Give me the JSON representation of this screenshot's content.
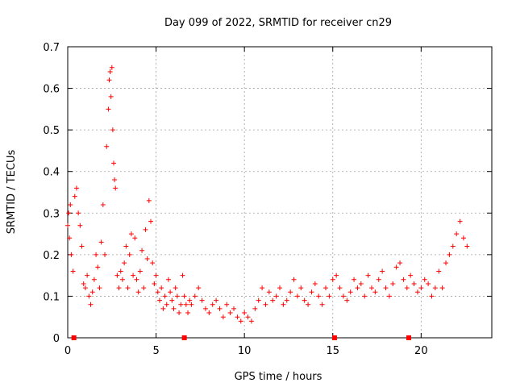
{
  "chart_data": {
    "type": "scatter",
    "title": "Day 099 of 2022, SRMTID for receiver cn29",
    "xlabel": "GPS time / hours",
    "ylabel": "SRMTID / TECUs",
    "xlim": [
      0,
      24
    ],
    "ylim": [
      0,
      0.7
    ],
    "xticks": [
      0,
      5,
      10,
      15,
      20
    ],
    "yticks": [
      0,
      0.1,
      0.2,
      0.3,
      0.4,
      0.5,
      0.6,
      0.7
    ],
    "grid": true,
    "marker": "+",
    "color": "#ff0000",
    "series": [
      {
        "name": "SRMTID",
        "x": [
          0.0,
          0.05,
          0.1,
          0.15,
          0.2,
          0.3,
          0.4,
          0.5,
          0.6,
          0.7,
          0.8,
          0.9,
          1.0,
          1.1,
          1.2,
          1.3,
          1.4,
          1.5,
          1.6,
          1.7,
          1.8,
          1.9,
          2.0,
          2.1,
          2.2,
          2.3,
          2.35,
          2.4,
          2.45,
          2.5,
          2.55,
          2.6,
          2.65,
          2.7,
          2.8,
          2.9,
          3.0,
          3.1,
          3.2,
          3.3,
          3.4,
          3.5,
          3.6,
          3.7,
          3.8,
          3.9,
          4.0,
          4.1,
          4.2,
          4.3,
          4.4,
          4.5,
          4.6,
          4.7,
          4.8,
          4.9,
          5.0,
          5.1,
          5.2,
          5.3,
          5.4,
          5.5,
          5.6,
          5.7,
          5.8,
          5.9,
          6.0,
          6.1,
          6.2,
          6.3,
          6.4,
          6.5,
          6.6,
          6.7,
          6.8,
          6.9,
          7.0,
          7.2,
          7.4,
          7.6,
          7.8,
          8.0,
          8.2,
          8.4,
          8.6,
          8.8,
          9.0,
          9.2,
          9.4,
          9.6,
          9.8,
          10.0,
          10.2,
          10.4,
          10.6,
          10.8,
          11.0,
          11.2,
          11.4,
          11.6,
          11.8,
          12.0,
          12.2,
          12.4,
          12.6,
          12.8,
          13.0,
          13.2,
          13.4,
          13.6,
          13.8,
          14.0,
          14.2,
          14.4,
          14.6,
          14.8,
          15.0,
          15.2,
          15.4,
          15.6,
          15.8,
          16.0,
          16.2,
          16.4,
          16.6,
          16.8,
          17.0,
          17.2,
          17.4,
          17.6,
          17.8,
          18.0,
          18.2,
          18.4,
          18.6,
          18.8,
          19.0,
          19.2,
          19.4,
          19.6,
          19.8,
          20.0,
          20.2,
          20.4,
          20.6,
          20.8,
          21.0,
          21.2,
          21.4,
          21.6,
          21.8,
          22.0,
          22.2,
          22.4,
          22.6
        ],
        "y": [
          0.27,
          0.3,
          0.24,
          0.32,
          0.2,
          0.16,
          0.34,
          0.36,
          0.3,
          0.27,
          0.22,
          0.13,
          0.12,
          0.15,
          0.1,
          0.08,
          0.11,
          0.14,
          0.2,
          0.17,
          0.12,
          0.23,
          0.32,
          0.2,
          0.46,
          0.55,
          0.62,
          0.64,
          0.58,
          0.65,
          0.5,
          0.42,
          0.38,
          0.36,
          0.15,
          0.12,
          0.16,
          0.14,
          0.18,
          0.22,
          0.12,
          0.2,
          0.25,
          0.15,
          0.24,
          0.14,
          0.11,
          0.16,
          0.21,
          0.12,
          0.26,
          0.19,
          0.33,
          0.28,
          0.18,
          0.13,
          0.15,
          0.11,
          0.09,
          0.12,
          0.07,
          0.1,
          0.08,
          0.14,
          0.11,
          0.09,
          0.07,
          0.12,
          0.1,
          0.06,
          0.08,
          0.15,
          0.1,
          0.08,
          0.06,
          0.09,
          0.08,
          0.1,
          0.12,
          0.09,
          0.07,
          0.06,
          0.08,
          0.09,
          0.07,
          0.05,
          0.08,
          0.06,
          0.07,
          0.05,
          0.04,
          0.06,
          0.05,
          0.04,
          0.07,
          0.09,
          0.12,
          0.08,
          0.11,
          0.09,
          0.1,
          0.12,
          0.08,
          0.09,
          0.11,
          0.14,
          0.1,
          0.12,
          0.09,
          0.08,
          0.11,
          0.13,
          0.1,
          0.08,
          0.12,
          0.1,
          0.14,
          0.15,
          0.12,
          0.1,
          0.09,
          0.11,
          0.14,
          0.12,
          0.13,
          0.1,
          0.15,
          0.12,
          0.11,
          0.14,
          0.16,
          0.12,
          0.1,
          0.13,
          0.17,
          0.18,
          0.14,
          0.12,
          0.15,
          0.13,
          0.11,
          0.12,
          0.14,
          0.13,
          0.1,
          0.12,
          0.16,
          0.12,
          0.18,
          0.2,
          0.22,
          0.25,
          0.28,
          0.24,
          0.22
        ]
      }
    ],
    "bottom_markers_x": [
      0.35,
      6.6,
      15.1,
      19.3
    ]
  }
}
